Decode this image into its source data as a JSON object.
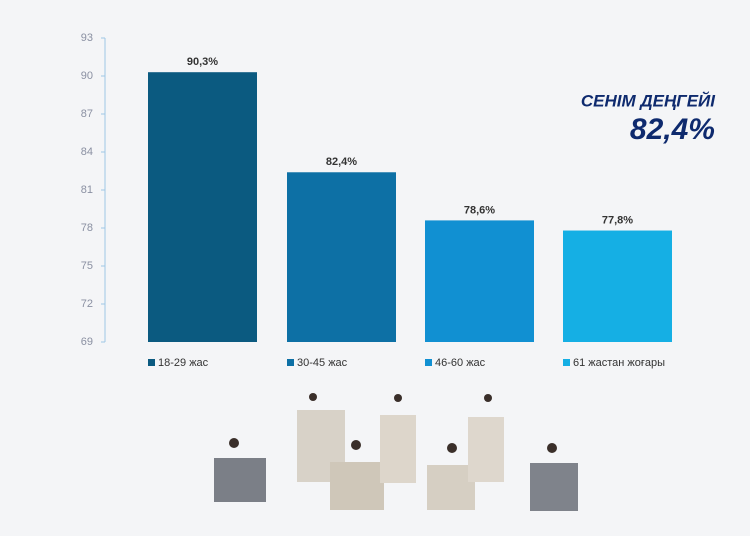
{
  "chart_data": {
    "type": "bar",
    "categories": [
      "18-29 жас",
      "30-45 жас",
      "46-60 жас",
      "61 жастан жоғары"
    ],
    "values": [
      90.3,
      82.4,
      78.6,
      77.8
    ],
    "value_labels": [
      "90,3%",
      "82,4%",
      "78,6%",
      "77,8%"
    ],
    "colors": [
      "#0b5a80",
      "#0d70a5",
      "#1190d2",
      "#15afe4"
    ],
    "ylim": [
      69,
      93
    ],
    "yticks": [
      69,
      72,
      75,
      78,
      81,
      84,
      87,
      90,
      93
    ],
    "annotations": [
      "СЕНІМ ДЕҢГЕЙІ",
      "82,4%"
    ]
  }
}
